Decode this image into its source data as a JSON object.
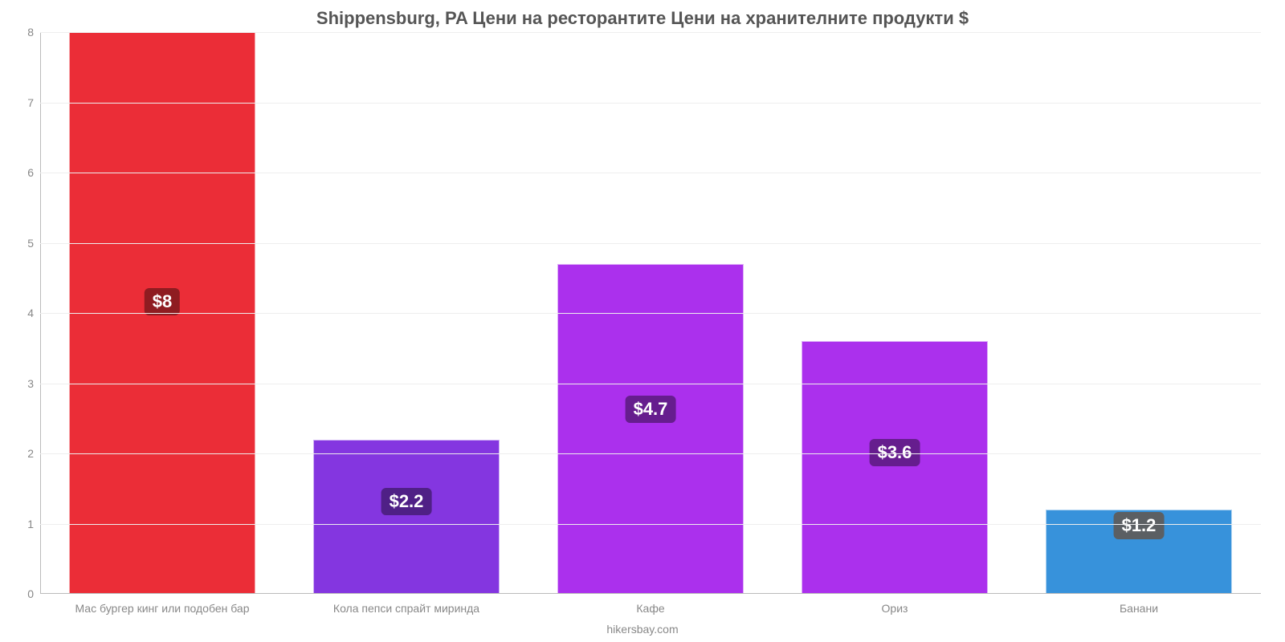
{
  "chart": {
    "type": "bar",
    "title": "Shippensburg, PA Цени на ресторантите Цени на хранителните продукти $",
    "title_color": "#555555",
    "title_fontsize": 22,
    "background_color": "#ffffff",
    "grid_color": "#eeeeee",
    "axis_color": "#bbbbbb",
    "axis_label_color": "#888888",
    "axis_label_fontsize": 14,
    "ylim": [
      0,
      8
    ],
    "ytick_step": 1,
    "yticks": [
      "0",
      "1",
      "2",
      "3",
      "4",
      "5",
      "6",
      "7",
      "8"
    ],
    "bar_width_pct": 76,
    "value_label_fontsize": 22,
    "value_label_text_color": "#ffffff",
    "credit": "hikersbay.com",
    "categories": [
      "Мас бургер кинг или подобен бар",
      "Кола пепси спрайт миринда",
      "Кафе",
      "Ориз",
      "Банани"
    ],
    "values": [
      8,
      2.2,
      4.7,
      3.6,
      1.2
    ],
    "value_labels": [
      "$8",
      "$2.2",
      "$4.7",
      "$3.6",
      "$1.2"
    ],
    "bar_colors": [
      "#eb2d37",
      "#8436e0",
      "#ab30ed",
      "#ab30ed",
      "#3792db"
    ],
    "badge_colors": [
      "#8f1c21",
      "#4f2086",
      "#661d8e",
      "#661d8e",
      "#5b5f63"
    ]
  }
}
